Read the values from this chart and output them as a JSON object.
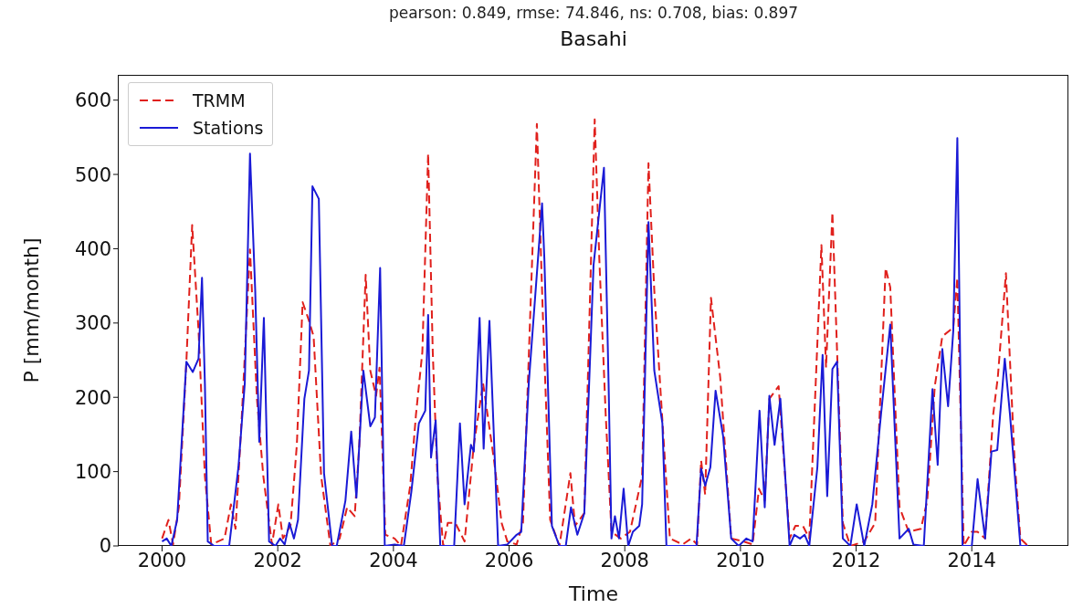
{
  "chart_data": {
    "type": "line",
    "title": "Basahi",
    "subtitle": "pearson: 0.849, rmse: 74.846, ns: 0.708, bias: 0.897",
    "xlabel": "Time",
    "ylabel": "P [mm/month]",
    "xlim": [
      1999.25,
      2015.67
    ],
    "xticks": [
      2000,
      2002,
      2004,
      2006,
      2008,
      2010,
      2012,
      2014
    ],
    "ylim": [
      0,
      634
    ],
    "yticks": [
      0,
      100,
      200,
      300,
      400,
      500,
      600
    ],
    "grid": false,
    "legend": "top left",
    "marker": "none",
    "series": [
      {
        "name": "TRMM",
        "color": "#e0201c",
        "line_style": "dashed",
        "x": [
          2000.0,
          2000.11,
          2000.19,
          2000.29,
          2000.42,
          2000.52,
          2000.63,
          2000.74,
          2000.85,
          2001.08,
          2001.19,
          2001.27,
          2001.38,
          2001.52,
          2001.64,
          2001.75,
          2001.9,
          2002.01,
          2002.09,
          2002.22,
          2002.33,
          2002.43,
          2002.54,
          2002.62,
          2002.75,
          2002.91,
          2003.07,
          2003.2,
          2003.33,
          2003.41,
          2003.52,
          2003.6,
          2003.7,
          2003.76,
          2003.86,
          2004.02,
          2004.13,
          2004.29,
          2004.39,
          2004.5,
          2004.6,
          2004.68,
          2004.76,
          2004.86,
          2004.94,
          2005.07,
          2005.23,
          2005.39,
          2005.55,
          2005.74,
          2005.87,
          2005.97,
          2006.13,
          2006.24,
          2006.48,
          2006.58,
          2006.71,
          2006.87,
          2007.06,
          2007.14,
          2007.3,
          2007.48,
          2007.56,
          2007.67,
          2007.77,
          2007.93,
          2008.09,
          2008.3,
          2008.41,
          2008.51,
          2008.65,
          2008.78,
          2009.0,
          2009.15,
          2009.25,
          2009.32,
          2009.39,
          2009.49,
          2009.65,
          2009.84,
          2010.05,
          2010.21,
          2010.32,
          2010.42,
          2010.5,
          2010.66,
          2010.85,
          2010.95,
          2011.08,
          2011.19,
          2011.4,
          2011.48,
          2011.59,
          2011.77,
          2011.9,
          2012.14,
          2012.33,
          2012.51,
          2012.59,
          2012.75,
          2012.91,
          2013.12,
          2013.23,
          2013.36,
          2013.49,
          2013.68,
          2013.75,
          2013.86,
          2014.0,
          2014.1,
          2014.23,
          2014.37,
          2014.45,
          2014.59,
          2014.74,
          2014.84,
          2014.97
        ],
        "values": [
          10,
          35,
          2,
          52,
          248,
          432,
          290,
          94,
          2,
          10,
          56,
          23,
          177,
          399,
          198,
          94,
          2,
          56,
          10,
          27,
          136,
          328,
          303,
          282,
          94,
          0,
          10,
          52,
          40,
          136,
          365,
          236,
          202,
          240,
          15,
          10,
          0,
          81,
          177,
          261,
          528,
          261,
          94,
          0,
          31,
          31,
          6,
          136,
          219,
          115,
          31,
          6,
          2,
          31,
          568,
          319,
          35,
          0,
          98,
          27,
          44,
          574,
          386,
          177,
          19,
          10,
          19,
          94,
          515,
          344,
          169,
          10,
          2,
          10,
          2,
          115,
          69,
          334,
          227,
          10,
          6,
          2,
          77,
          61,
          198,
          215,
          10,
          27,
          27,
          10,
          405,
          240,
          449,
          31,
          0,
          6,
          31,
          374,
          348,
          52,
          19,
          23,
          61,
          215,
          282,
          294,
          361,
          0,
          19,
          19,
          10,
          177,
          227,
          367,
          115,
          10,
          0
        ]
      },
      {
        "name": "Stations",
        "color": "#1a1ad6",
        "line_style": "solid",
        "x": [
          2000.0,
          2000.08,
          2000.16,
          2000.26,
          2000.42,
          2000.53,
          2000.63,
          2000.69,
          2000.74,
          2000.79,
          2000.9,
          2001.16,
          2001.32,
          2001.43,
          2001.52,
          2001.61,
          2001.68,
          2001.76,
          2001.85,
          2001.96,
          2002.04,
          2002.12,
          2002.2,
          2002.28,
          2002.35,
          2002.46,
          2002.54,
          2002.6,
          2002.71,
          2002.8,
          2002.94,
          2003.02,
          2003.17,
          2003.27,
          2003.36,
          2003.48,
          2003.6,
          2003.68,
          2003.77,
          2003.85,
          2004.02,
          2004.18,
          2004.31,
          2004.44,
          2004.55,
          2004.6,
          2004.65,
          2004.73,
          2004.81,
          2005.05,
          2005.15,
          2005.23,
          2005.34,
          2005.39,
          2005.49,
          2005.56,
          2005.66,
          2005.81,
          2005.97,
          2006.13,
          2006.21,
          2006.34,
          2006.57,
          2006.61,
          2006.74,
          2006.87,
          2006.98,
          2007.07,
          2007.18,
          2007.3,
          2007.46,
          2007.64,
          2007.72,
          2007.77,
          2007.83,
          2007.9,
          2007.98,
          2008.06,
          2008.14,
          2008.25,
          2008.3,
          2008.41,
          2008.51,
          2008.65,
          2008.72,
          2008.94,
          2009.15,
          2009.24,
          2009.32,
          2009.39,
          2009.48,
          2009.57,
          2009.7,
          2009.84,
          2009.97,
          2010.1,
          2010.21,
          2010.33,
          2010.42,
          2010.5,
          2010.59,
          2010.69,
          2010.85,
          2010.93,
          2011.03,
          2011.11,
          2011.19,
          2011.33,
          2011.42,
          2011.5,
          2011.59,
          2011.67,
          2011.77,
          2011.9,
          2012.01,
          2012.14,
          2012.28,
          2012.43,
          2012.59,
          2012.75,
          2012.91,
          2012.99,
          2013.17,
          2013.32,
          2013.41,
          2013.49,
          2013.59,
          2013.68,
          2013.75,
          2013.84,
          2014.0,
          2014.1,
          2014.23,
          2014.34,
          2014.44,
          2014.57,
          2014.66,
          2014.84,
          2014.97
        ],
        "values": [
          6,
          10,
          0,
          35,
          248,
          234,
          252,
          361,
          219,
          6,
          0,
          0,
          106,
          219,
          528,
          344,
          140,
          307,
          6,
          0,
          10,
          2,
          31,
          10,
          35,
          198,
          236,
          484,
          467,
          98,
          0,
          0,
          61,
          154,
          65,
          236,
          161,
          173,
          374,
          0,
          2,
          0,
          73,
          165,
          182,
          311,
          119,
          169,
          0,
          0,
          165,
          56,
          136,
          127,
          307,
          131,
          303,
          0,
          2,
          15,
          19,
          219,
          461,
          386,
          27,
          0,
          0,
          52,
          15,
          44,
          378,
          509,
          219,
          10,
          40,
          10,
          77,
          0,
          19,
          27,
          56,
          436,
          236,
          165,
          0,
          0,
          0,
          0,
          104,
          81,
          106,
          209,
          148,
          10,
          0,
          10,
          6,
          182,
          52,
          202,
          136,
          198,
          0,
          15,
          10,
          15,
          0,
          106,
          257,
          67,
          238,
          248,
          10,
          0,
          56,
          0,
          56,
          177,
          298,
          10,
          23,
          2,
          0,
          211,
          109,
          265,
          188,
          290,
          549,
          0,
          0,
          90,
          10,
          127,
          129,
          252,
          177,
          0,
          0
        ]
      }
    ]
  }
}
